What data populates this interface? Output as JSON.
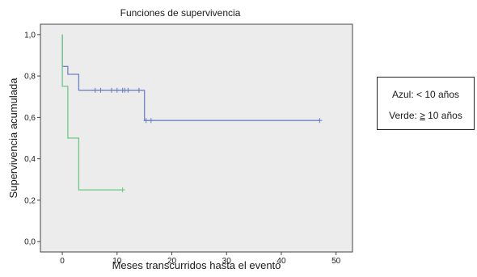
{
  "chart_data": {
    "type": "line",
    "step": true,
    "title": "Funciones de supervivencia",
    "xlabel": "Meses transcurridos hasta el evento",
    "ylabel": "Supervivencia acumulada",
    "xlim": [
      -4,
      53
    ],
    "ylim": [
      -0.05,
      1.05
    ],
    "xticks": [
      0,
      10,
      20,
      30,
      40,
      50
    ],
    "xtick_labels": [
      "0",
      "10",
      "20",
      "30",
      "40",
      "50"
    ],
    "yticks": [
      0.0,
      0.2,
      0.4,
      0.6,
      0.8,
      1.0
    ],
    "ytick_labels": [
      "0,0",
      "0,2",
      "0,4",
      "0,6",
      "0,8",
      "1,0"
    ],
    "grid": false,
    "plot_background": "#ececec",
    "series": [
      {
        "color": "#6f82c4",
        "steps": [
          [
            0,
            1.0
          ],
          [
            0,
            0.846
          ],
          [
            1,
            0.846
          ],
          [
            1,
            0.808
          ],
          [
            3,
            0.808
          ],
          [
            3,
            0.731
          ],
          [
            15,
            0.731
          ],
          [
            15,
            0.585
          ],
          [
            47,
            0.585
          ]
        ],
        "censored": [
          [
            6,
            0.731
          ],
          [
            7,
            0.731
          ],
          [
            9,
            0.731
          ],
          [
            10,
            0.731
          ],
          [
            11,
            0.731
          ],
          [
            11.4,
            0.731
          ],
          [
            12,
            0.731
          ],
          [
            14,
            0.731
          ],
          [
            15.3,
            0.585
          ],
          [
            16.2,
            0.585
          ],
          [
            47,
            0.585
          ]
        ]
      },
      {
        "color": "#6cc788",
        "steps": [
          [
            0,
            1.0
          ],
          [
            0,
            0.75
          ],
          [
            1,
            0.75
          ],
          [
            1,
            0.5
          ],
          [
            3,
            0.5
          ],
          [
            3,
            0.25
          ],
          [
            11,
            0.25
          ]
        ],
        "censored": [
          [
            11,
            0.25
          ]
        ]
      }
    ],
    "legend": {
      "placement": "right",
      "blue_label": "Azul: < 10 años",
      "green_prefix": "Verde: ",
      "green_symbol": "≥",
      "green_suffix": " 10 años"
    }
  }
}
